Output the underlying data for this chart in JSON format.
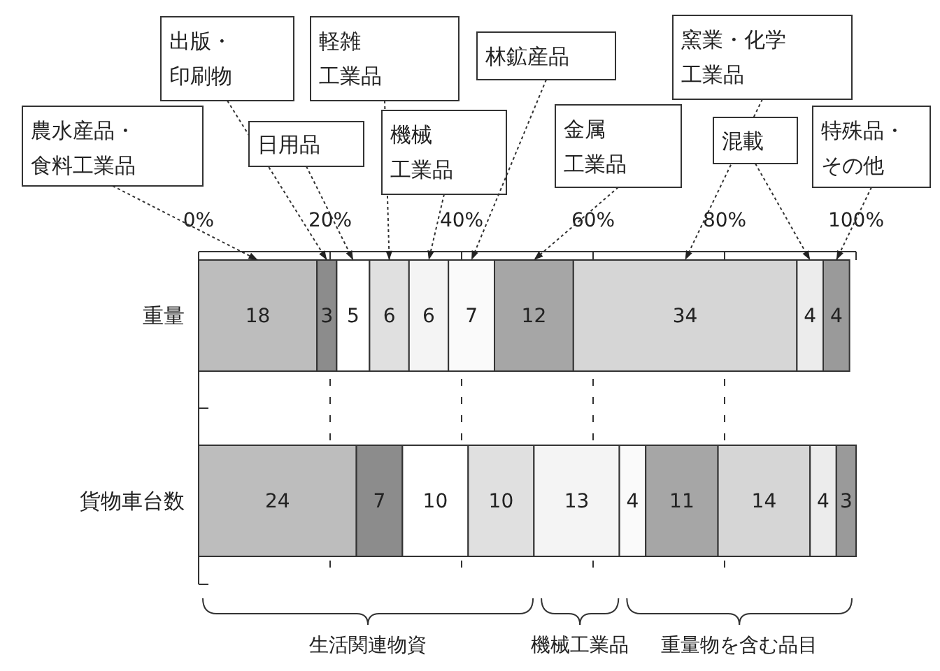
{
  "chart_data": {
    "type": "bar",
    "orientation": "horizontal",
    "stacked": true,
    "categories": [
      "重量",
      "貨物車台数"
    ],
    "series": [
      {
        "name": "農水産品・食料工業品",
        "color": "#bdbdbd",
        "values": [
          18,
          24
        ]
      },
      {
        "name": "出版・印刷物",
        "color": "#8c8c8c",
        "values": [
          3,
          7
        ]
      },
      {
        "name": "日用品",
        "color": "#ffffff",
        "values": [
          5,
          10
        ]
      },
      {
        "name": "軽雑工業品",
        "color": "#e0e0e0",
        "values": [
          6,
          10
        ]
      },
      {
        "name": "機械工業品",
        "color": "#f4f4f4",
        "values": [
          6,
          13
        ]
      },
      {
        "name": "林鉱産品",
        "color": "#fafafa",
        "values": [
          7,
          4
        ]
      },
      {
        "name": "金属工業品",
        "color": "#a6a6a6",
        "values": [
          12,
          11
        ]
      },
      {
        "name": "窯業・化学工業品",
        "color": "#d6d6d6",
        "values": [
          34,
          14
        ]
      },
      {
        "name": "混載",
        "color": "#ececec",
        "values": [
          4,
          4
        ]
      },
      {
        "name": "特殊品・その他",
        "color": "#9a9a9a",
        "values": [
          4,
          3
        ]
      }
    ],
    "xlim": [
      0,
      100
    ],
    "xticks": [
      {
        "value": 0,
        "label": "0%"
      },
      {
        "value": 20,
        "label": "20%"
      },
      {
        "value": 40,
        "label": "40%"
      },
      {
        "value": 60,
        "label": "60%"
      },
      {
        "value": 80,
        "label": "80%"
      },
      {
        "value": 100,
        "label": "100%"
      }
    ],
    "grid": "x",
    "legend": "top",
    "data_labels": true,
    "annotations": [
      "生活関連物資",
      "機械工業品",
      "重量物を含む品目"
    ]
  }
}
